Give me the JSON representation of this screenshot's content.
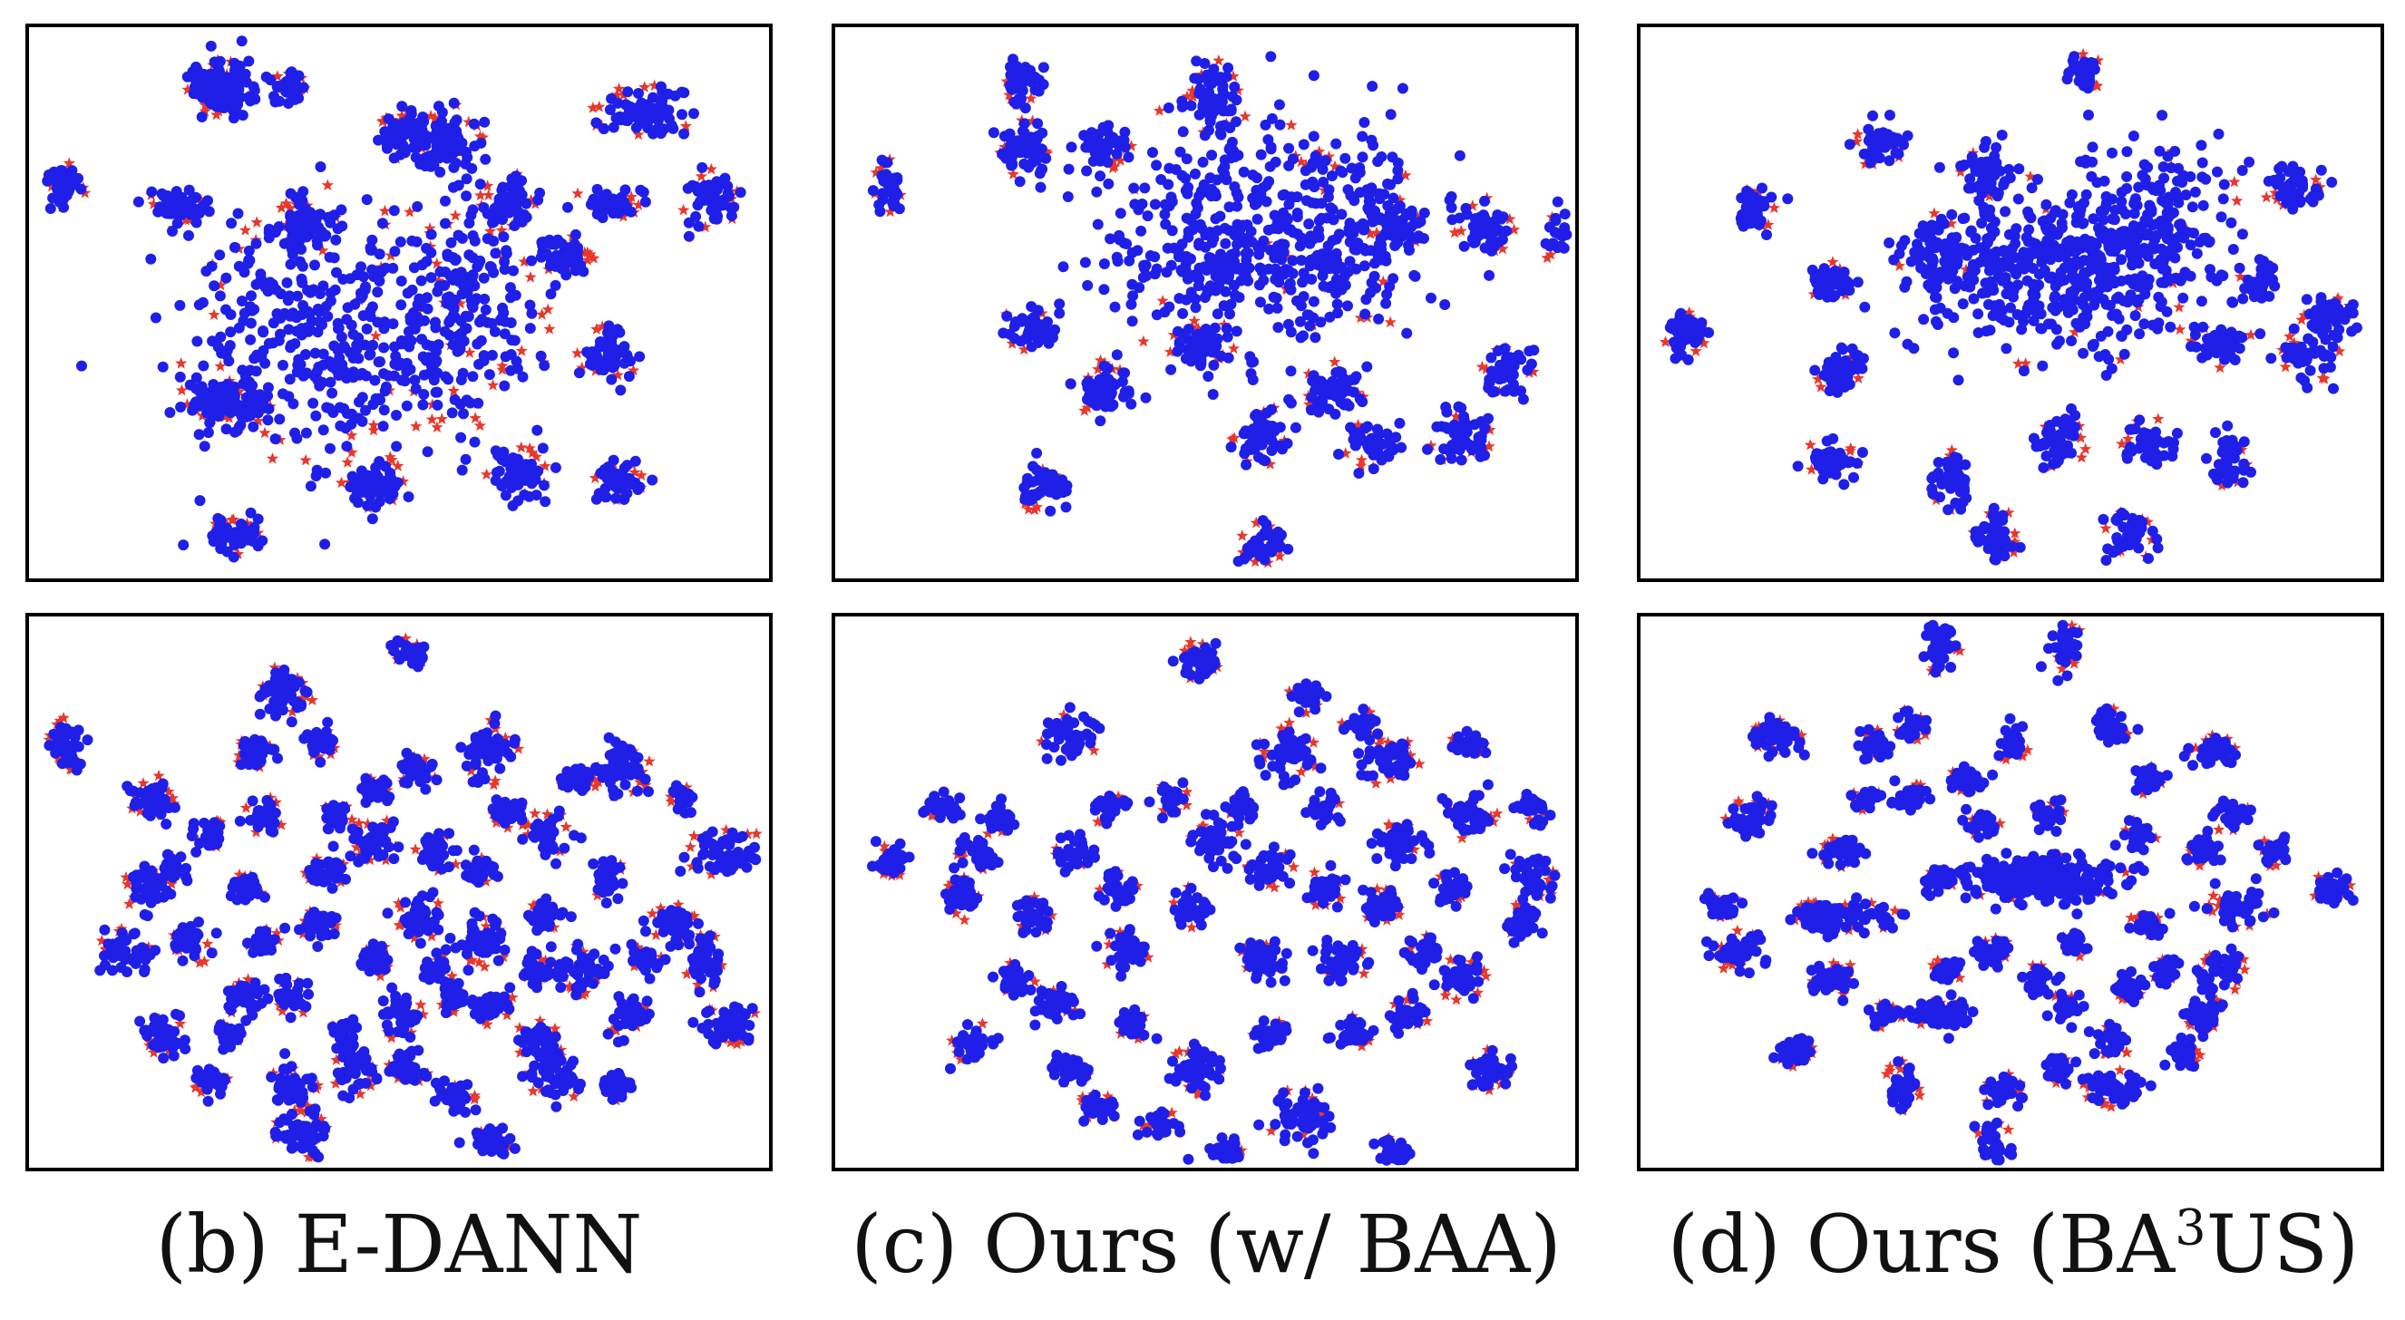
{
  "colors": {
    "source": "#1f1fe8",
    "target": "#e8372c",
    "frame": "#000000"
  },
  "captions": [
    {
      "prefix": "(b) E-DANN",
      "sup": "",
      "suffix": ""
    },
    {
      "prefix": "(c) Ours (w/ BAA)",
      "sup": "",
      "suffix": ""
    },
    {
      "prefix": "(d) Ours (BA",
      "sup": "3",
      "suffix": "US)"
    }
  ],
  "chart_data": [
    {
      "type": "scatter",
      "panel": "top-left",
      "method": "E-DANN",
      "axes": "hidden",
      "series": [
        {
          "marker": "circle",
          "color": "#1f1fe8"
        },
        {
          "marker": "star",
          "color": "#e8372c"
        }
      ],
      "clusters": 22,
      "center_spread": "wide"
    },
    {
      "type": "scatter",
      "panel": "top-middle",
      "method": "Ours (w/ BAA)",
      "axes": "hidden",
      "series": [
        {
          "marker": "circle",
          "color": "#1f1fe8"
        },
        {
          "marker": "star",
          "color": "#e8372c"
        }
      ],
      "clusters": 20,
      "center_spread": "wide"
    },
    {
      "type": "scatter",
      "panel": "top-right",
      "method": "Ours (BA3US)",
      "axes": "hidden",
      "series": [
        {
          "marker": "circle",
          "color": "#1f1fe8"
        },
        {
          "marker": "star",
          "color": "#e8372c"
        }
      ],
      "clusters": 22,
      "center_spread": "dense"
    },
    {
      "type": "scatter",
      "panel": "bottom-left",
      "method": "E-DANN",
      "axes": "hidden",
      "series": [
        {
          "marker": "circle",
          "color": "#1f1fe8"
        },
        {
          "marker": "star",
          "color": "#e8372c"
        }
      ],
      "clusters": 60,
      "center_spread": "scattered"
    },
    {
      "type": "scatter",
      "panel": "bottom-middle",
      "method": "Ours (w/ BAA)",
      "axes": "hidden",
      "series": [
        {
          "marker": "circle",
          "color": "#1f1fe8"
        },
        {
          "marker": "star",
          "color": "#e8372c"
        }
      ],
      "clusters": 60,
      "center_spread": "scattered"
    },
    {
      "type": "scatter",
      "panel": "bottom-right",
      "method": "Ours (BA3US)",
      "axes": "hidden",
      "series": [
        {
          "marker": "circle",
          "color": "#1f1fe8"
        },
        {
          "marker": "star",
          "color": "#e8372c"
        }
      ],
      "clusters": 50,
      "center_spread": "elongated"
    }
  ]
}
